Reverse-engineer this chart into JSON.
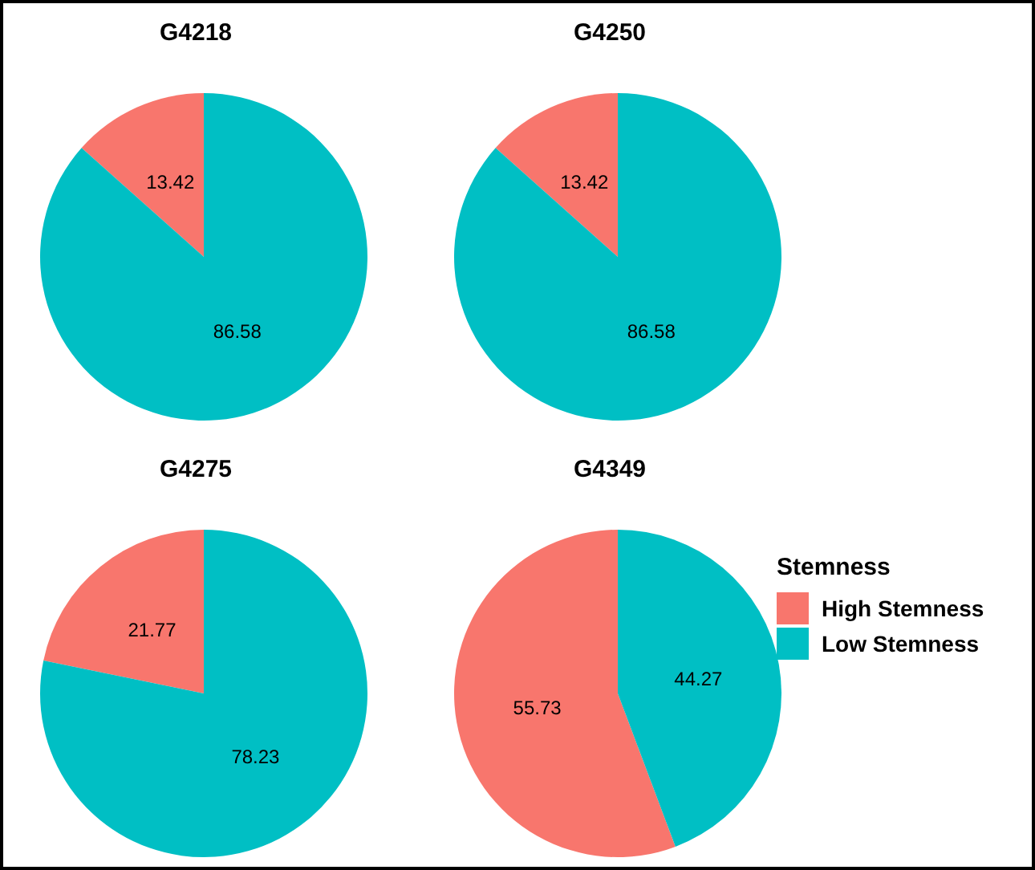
{
  "chart_data": [
    {
      "type": "pie",
      "title": "G4218",
      "categories": [
        "High Stemness",
        "Low Stemness"
      ],
      "values": [
        13.42,
        86.58
      ],
      "colors": [
        "#f8766d",
        "#00bfc4"
      ],
      "data_labels": true,
      "legend": "right",
      "legend_title": "Stemness"
    },
    {
      "type": "pie",
      "title": "G4250",
      "categories": [
        null,
        null
      ],
      "values": [
        13.42,
        86.58
      ],
      "colors": [
        "#f8766d",
        "#00bfc4"
      ],
      "data_labels": true
    },
    {
      "type": "pie",
      "title": "G4275",
      "categories": [
        null,
        null
      ],
      "values": [
        21.77,
        78.23
      ],
      "colors": [
        "#f8766d",
        "#00bfc4"
      ],
      "data_labels": true
    },
    {
      "type": "pie",
      "title": "G4349",
      "categories": [
        null,
        null
      ],
      "values": [
        55.73,
        44.27
      ],
      "colors": [
        "#f8766d",
        "#00bfc4"
      ],
      "data_labels": true
    }
  ]
}
